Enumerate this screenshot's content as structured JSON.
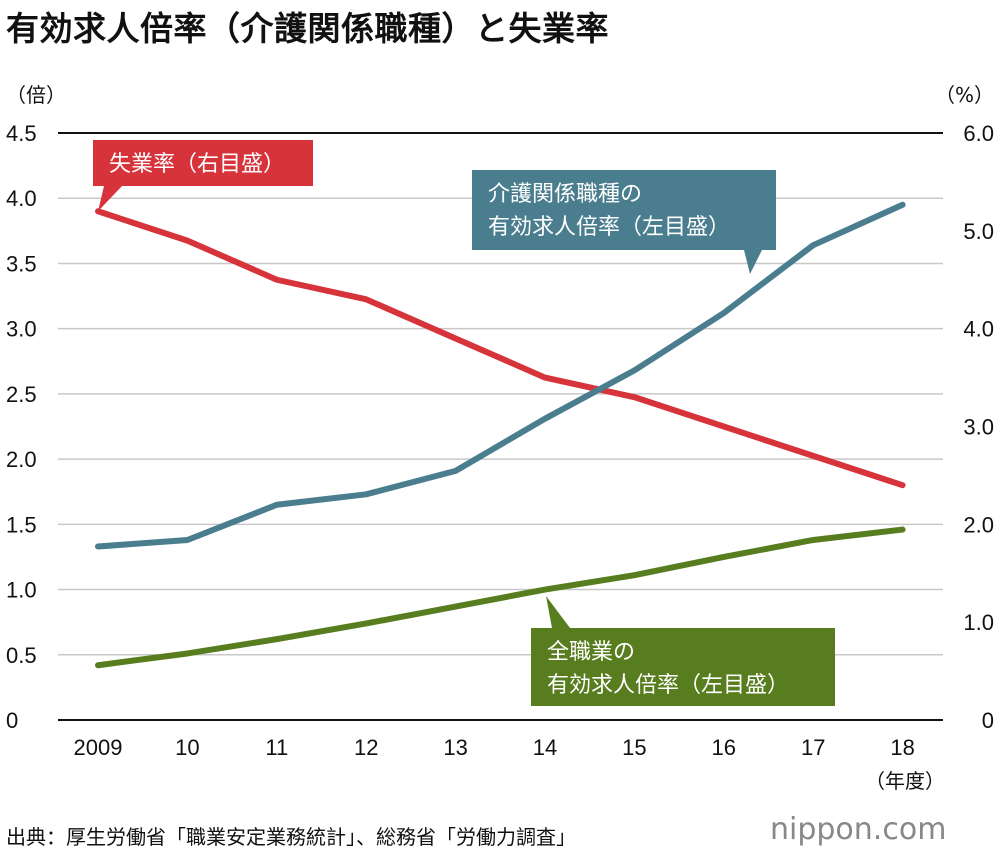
{
  "title": "有効求人倍率（介護関係職種）と失業率",
  "source": "出典：厚生労働省「職業安定業務統計」、総務省「労働力調査」",
  "logo": {
    "icon": "nippon-logo-icon",
    "text": "nippon.com"
  },
  "colors": {
    "unemployment": "#d6333a",
    "care": "#4a7d8e",
    "all": "#577d1f",
    "grid": "#c8c8c8",
    "axis": "#111111"
  },
  "chart_data": {
    "type": "line",
    "title": "有効求人倍率（介護関係職種）と失業率",
    "categories": [
      "2009",
      "10",
      "11",
      "12",
      "13",
      "14",
      "15",
      "16",
      "17",
      "18"
    ],
    "x_unit": "（年度）",
    "y_left": {
      "unit": "（倍）",
      "min": 0,
      "max": 4.5,
      "ticks": [
        "0",
        "0.5",
        "1.0",
        "1.5",
        "2.0",
        "2.5",
        "3.0",
        "3.5",
        "4.0",
        "4.5"
      ]
    },
    "y_right": {
      "unit": "（%）",
      "min": 0,
      "max": 6.0,
      "ticks": [
        "0",
        "1.0",
        "2.0",
        "3.0",
        "4.0",
        "5.0",
        "6.0"
      ]
    },
    "grid": true,
    "series": [
      {
        "name": "失業率",
        "axis": "right",
        "color": "#d6333a",
        "values": [
          5.2,
          4.9,
          4.5,
          4.3,
          3.9,
          3.5,
          3.3,
          3.0,
          2.7,
          2.4
        ],
        "label_lines": [
          "失業率（右目盛）"
        ]
      },
      {
        "name": "介護関係職種の有効求人倍率",
        "axis": "left",
        "color": "#4a7d8e",
        "values": [
          1.33,
          1.38,
          1.65,
          1.73,
          1.91,
          2.31,
          2.68,
          3.12,
          3.64,
          3.95
        ],
        "label_lines": [
          "介護関係職種の",
          "有効求人倍率（左目盛）"
        ]
      },
      {
        "name": "全職業の有効求人倍率",
        "axis": "left",
        "color": "#577d1f",
        "values": [
          0.42,
          0.51,
          0.62,
          0.74,
          0.87,
          1.0,
          1.11,
          1.25,
          1.38,
          1.46
        ],
        "label_lines": [
          "全職業の",
          "有効求人倍率（左目盛）"
        ]
      }
    ]
  }
}
